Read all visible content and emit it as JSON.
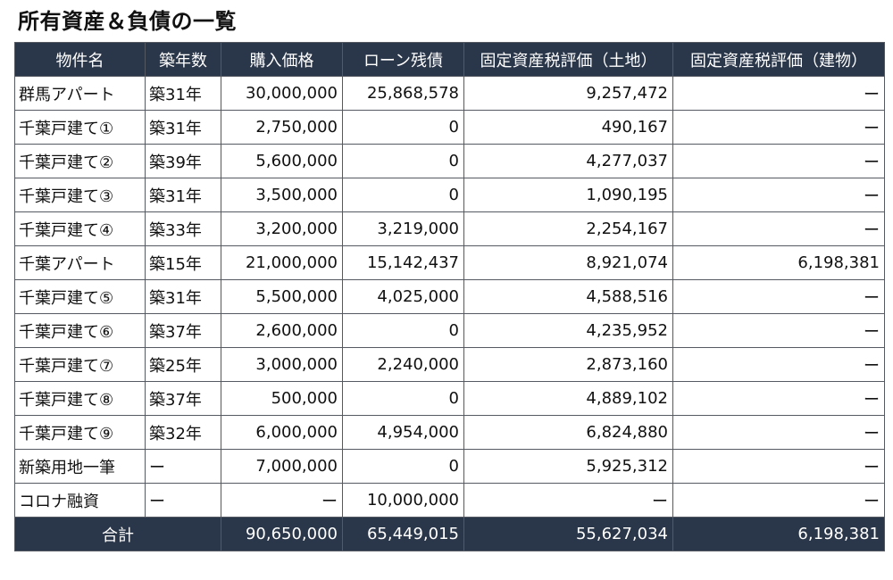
{
  "title": "所有資産＆負債の一覧",
  "columns": [
    "物件名",
    "築年数",
    "購入価格",
    "ローン残債",
    "固定資産税評価（土地）",
    "固定資産税評価（建物）"
  ],
  "rows": [
    {
      "name": "群馬アパート",
      "age": "築31年",
      "price": "30,000,000",
      "loan": "25,868,578",
      "land": "9,257,472",
      "building": "ー"
    },
    {
      "name": "千葉戸建て①",
      "age": "築31年",
      "price": "2,750,000",
      "loan": "0",
      "land": "490,167",
      "building": "ー"
    },
    {
      "name": "千葉戸建て②",
      "age": "築39年",
      "price": "5,600,000",
      "loan": "0",
      "land": "4,277,037",
      "building": "ー"
    },
    {
      "name": "千葉戸建て③",
      "age": "築31年",
      "price": "3,500,000",
      "loan": "0",
      "land": "1,090,195",
      "building": "ー"
    },
    {
      "name": "千葉戸建て④",
      "age": "築33年",
      "price": "3,200,000",
      "loan": "3,219,000",
      "land": "2,254,167",
      "building": "ー"
    },
    {
      "name": "千葉アパート",
      "age": "築15年",
      "price": "21,000,000",
      "loan": "15,142,437",
      "land": "8,921,074",
      "building": "6,198,381"
    },
    {
      "name": "千葉戸建て⑤",
      "age": "築31年",
      "price": "5,500,000",
      "loan": "4,025,000",
      "land": "4,588,516",
      "building": "ー"
    },
    {
      "name": "千葉戸建て⑥",
      "age": "築37年",
      "price": "2,600,000",
      "loan": "0",
      "land": "4,235,952",
      "building": "ー"
    },
    {
      "name": "千葉戸建て⑦",
      "age": "築25年",
      "price": "3,000,000",
      "loan": "2,240,000",
      "land": "2,873,160",
      "building": "ー"
    },
    {
      "name": "千葉戸建て⑧",
      "age": "築37年",
      "price": "500,000",
      "loan": "0",
      "land": "4,889,102",
      "building": "ー"
    },
    {
      "name": "千葉戸建て⑨",
      "age": "築32年",
      "price": "6,000,000",
      "loan": "4,954,000",
      "land": "6,824,880",
      "building": "ー"
    },
    {
      "name": "新築用地一筆",
      "age": "ー",
      "price": "7,000,000",
      "loan": "0",
      "land": "5,925,312",
      "building": "ー"
    },
    {
      "name": "コロナ融資",
      "age": "ー",
      "price": "ー",
      "loan": "10,000,000",
      "land": "ー",
      "building": "ー"
    }
  ],
  "total": {
    "label": "合計",
    "price": "90,650,000",
    "loan": "65,449,015",
    "land": "55,627,034",
    "building": "6,198,381"
  },
  "colors": {
    "header_bg": "#2a3649",
    "header_text": "#ffffff",
    "border": "#555a62"
  }
}
